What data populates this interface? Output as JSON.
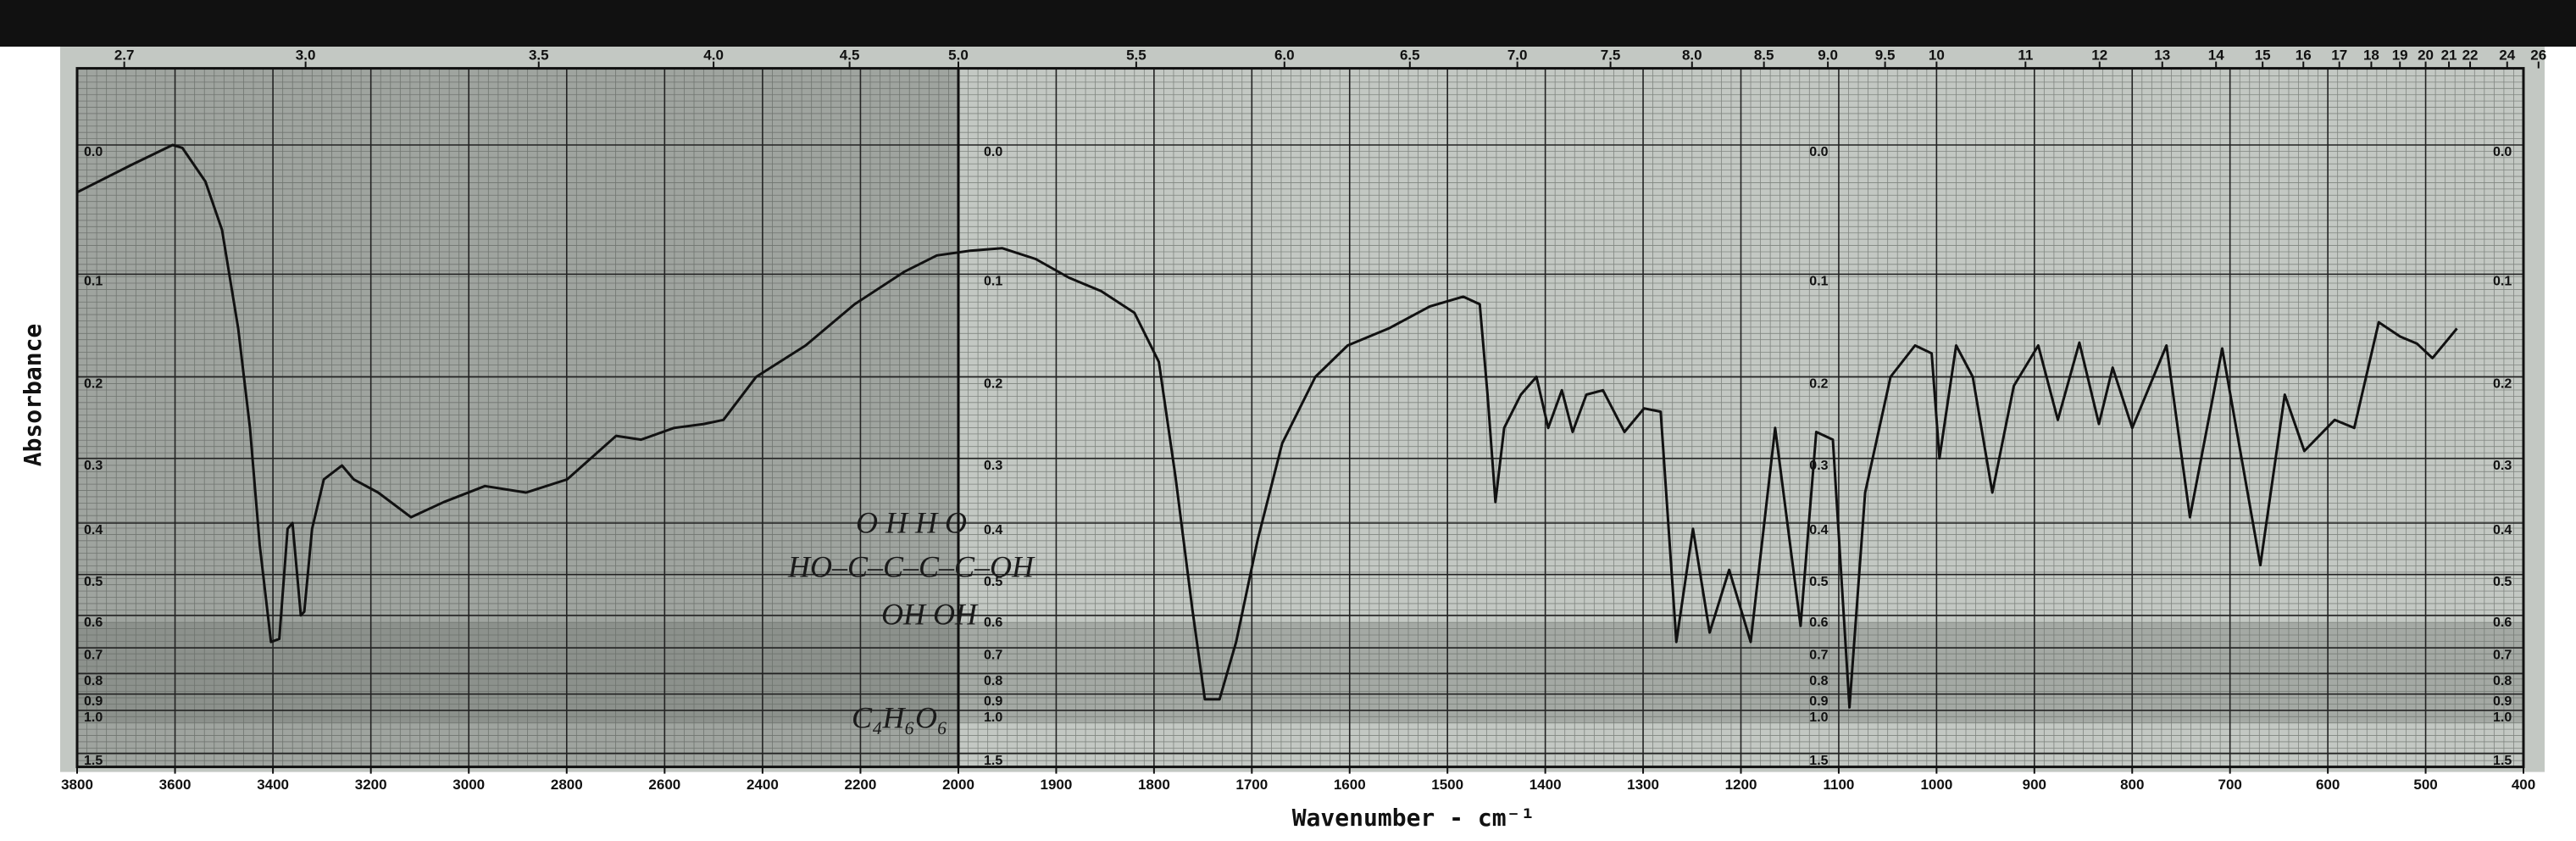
{
  "chart_data": {
    "type": "line",
    "y_label": "Absorbance",
    "x_label": "Wavenumber - cm⁻¹",
    "yscale": "absorbance",
    "xlim": [
      3800,
      400
    ],
    "xbreak": 2000,
    "ylim": [
      -0.05,
      2
    ],
    "xticks": [
      3800,
      3600,
      3400,
      3200,
      3000,
      2800,
      2600,
      2400,
      2200,
      2000,
      1900,
      1800,
      1700,
      1600,
      1500,
      1400,
      1300,
      1200,
      1100,
      1000,
      900,
      800,
      700,
      600,
      500,
      400
    ],
    "yticks": [
      {
        "value": 0,
        "label": "0.0"
      },
      0.1,
      0.2,
      0.3,
      0.4,
      0.5,
      0.6,
      0.7,
      0.8,
      0.9,
      {
        "value": 1,
        "label": "1.0"
      },
      1.5
    ],
    "x2ticks": [
      2.7,
      {
        "value": 3,
        "label": "3.0"
      },
      3.5,
      {
        "value": 4,
        "label": "4.0"
      },
      4.5,
      {
        "value": 5,
        "label": "5.0"
      },
      5.5,
      {
        "value": 6,
        "label": "6.0"
      },
      6.5,
      {
        "value": 7,
        "label": "7.0"
      },
      7.5,
      {
        "value": 8,
        "label": "8.0"
      },
      8.5,
      {
        "value": 9,
        "label": "9.0"
      },
      9.5,
      10,
      11,
      12,
      13,
      14,
      15,
      16,
      17,
      18,
      19,
      20,
      21,
      22,
      24,
      26
    ],
    "grid": true,
    "color": "#111111",
    "x": [
      3800,
      3689,
      3605,
      3585,
      3538,
      3504,
      3471,
      3447,
      3427,
      3404,
      3387,
      3370,
      3360,
      3343,
      3336,
      3320,
      3296,
      3259,
      3235,
      3185,
      3118,
      3051,
      2967,
      2883,
      2799,
      2699,
      2648,
      2581,
      2520,
      2480,
      2413,
      2312,
      2212,
      2111,
      2044,
      1988,
      1955,
      1921,
      1887,
      1854,
      1820,
      1795,
      1778,
      1761,
      1748,
      1733,
      1716,
      1694,
      1669,
      1635,
      1602,
      1560,
      1518,
      1484,
      1467,
      1459,
      1451,
      1442,
      1425,
      1409,
      1397,
      1383,
      1372,
      1358,
      1341,
      1319,
      1299,
      1282,
      1266,
      1249,
      1232,
      1212,
      1190,
      1165,
      1139,
      1123,
      1106,
      1089,
      1073,
      1047,
      1022,
      1005,
      997,
      980,
      963,
      943,
      921,
      896,
      876,
      854,
      834,
      820,
      800,
      765,
      741,
      708,
      669,
      644,
      624,
      593,
      573,
      548,
      526,
      509,
      493,
      468
    ],
    "values": [
      0.034,
      0.014,
      0.0,
      0.002,
      0.026,
      0.063,
      0.15,
      0.26,
      0.44,
      0.68,
      0.67,
      0.41,
      0.4,
      0.6,
      0.59,
      0.41,
      0.33,
      0.31,
      0.33,
      0.35,
      0.39,
      0.365,
      0.34,
      0.35,
      0.33,
      0.27,
      0.275,
      0.26,
      0.255,
      0.25,
      0.2,
      0.167,
      0.127,
      0.098,
      0.084,
      0.08,
      0.078,
      0.087,
      0.103,
      0.115,
      0.135,
      0.184,
      0.327,
      0.58,
      0.93,
      0.93,
      0.68,
      0.43,
      0.28,
      0.2,
      0.167,
      0.15,
      0.129,
      0.12,
      0.127,
      0.22,
      0.365,
      0.26,
      0.22,
      0.2,
      0.26,
      0.215,
      0.265,
      0.22,
      0.215,
      0.265,
      0.236,
      0.24,
      0.68,
      0.41,
      0.65,
      0.49,
      0.68,
      0.26,
      0.63,
      0.265,
      0.275,
      0.98,
      0.35,
      0.2,
      0.167,
      0.175,
      0.3,
      0.167,
      0.2,
      0.35,
      0.21,
      0.167,
      0.25,
      0.164,
      0.255,
      0.19,
      0.26,
      0.167,
      0.39,
      0.17,
      0.48,
      0.22,
      0.29,
      0.25,
      0.26,
      0.144,
      0.158,
      0.165,
      0.18,
      0.15
    ],
    "annotations": [
      "O    H  H   O",
      "HO–C–C–C–C–OH",
      "OH OH",
      "C₄H₆O₆"
    ]
  }
}
